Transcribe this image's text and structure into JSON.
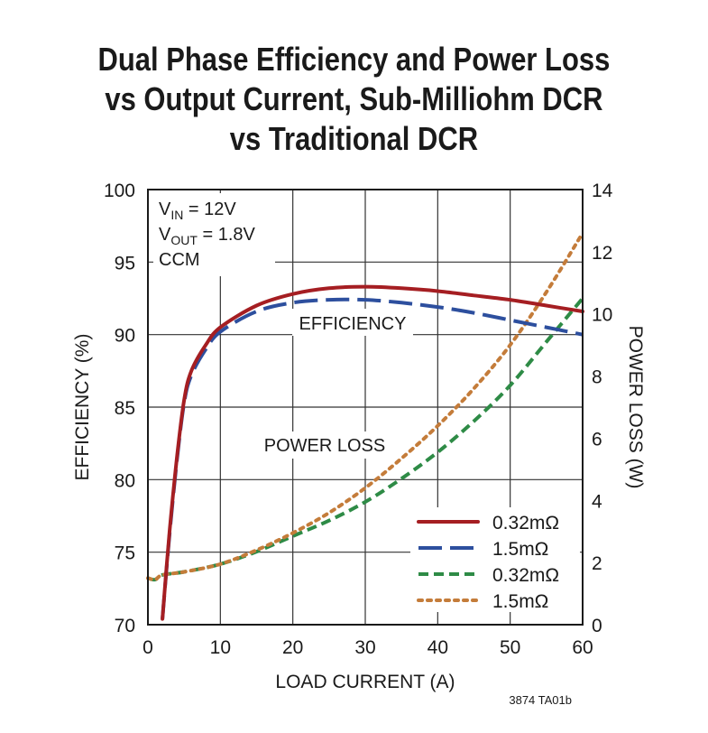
{
  "title_lines": [
    "Dual Phase Efficiency and Power Loss",
    "vs Output Current, Sub-Milliohm DCR",
    "vs Traditional DCR"
  ],
  "figure_code": "3874 TA01b",
  "conditions": {
    "vin": {
      "main": "V",
      "sub": "IN",
      "rest": " = 12V"
    },
    "vout": {
      "main": "V",
      "sub": "OUT",
      "rest": " = 1.8V"
    },
    "mode": "CCM"
  },
  "annotations": {
    "efficiency": "EFFICIENCY",
    "power_loss": "POWER LOSS"
  },
  "chart_data": {
    "type": "line",
    "xlabel": "LOAD CURRENT (A)",
    "ylabel": "EFFICIENCY (%)",
    "y2label": "POWER LOSS (W)",
    "xlim": [
      0,
      60
    ],
    "ylim": [
      70,
      100
    ],
    "y2lim": [
      0,
      14
    ],
    "xticks": [
      "0",
      "10",
      "20",
      "30",
      "40",
      "50",
      "60"
    ],
    "yticks": [
      "70",
      "75",
      "80",
      "85",
      "90",
      "95",
      "100"
    ],
    "y2ticks": [
      "0",
      "2",
      "4",
      "6",
      "8",
      "10",
      "12",
      "14"
    ],
    "grid": true,
    "legend_position": "bottom-right",
    "series": [
      {
        "name": "0.32mΩ",
        "axis": "efficiency",
        "color": "#a51e22",
        "dash": "solid",
        "x": [
          2,
          3,
          4,
          5,
          6,
          8,
          10,
          15,
          20,
          25,
          30,
          35,
          40,
          45,
          50,
          55,
          60
        ],
        "y": [
          70.4,
          76.5,
          81.5,
          85.5,
          87.5,
          89.3,
          90.5,
          92.0,
          92.8,
          93.2,
          93.3,
          93.2,
          93.0,
          92.7,
          92.4,
          92.0,
          91.6
        ]
      },
      {
        "name": "1.5mΩ",
        "axis": "efficiency",
        "color": "#2d4f9e",
        "dash": "long-dash",
        "x": [
          2,
          3,
          4,
          5,
          6,
          8,
          10,
          15,
          20,
          25,
          30,
          35,
          40,
          45,
          50,
          55,
          60
        ],
        "y": [
          70.4,
          76.3,
          81.3,
          85.3,
          87.2,
          89.0,
          90.2,
          91.6,
          92.2,
          92.4,
          92.4,
          92.2,
          91.9,
          91.5,
          91.0,
          90.5,
          90.0
        ]
      },
      {
        "name": "0.32mΩ",
        "axis": "power_loss",
        "color": "#2e8b46",
        "dash": "dashed",
        "x": [
          0,
          1,
          2,
          5,
          10,
          15,
          20,
          25,
          30,
          35,
          40,
          45,
          50,
          55,
          60
        ],
        "y": [
          1.5,
          1.45,
          1.6,
          1.7,
          1.95,
          2.35,
          2.85,
          3.35,
          3.95,
          4.7,
          5.55,
          6.55,
          7.7,
          9.1,
          10.5
        ]
      },
      {
        "name": "1.5mΩ",
        "axis": "power_loss",
        "color": "#c47c3a",
        "dash": "dotted",
        "x": [
          0,
          1,
          2,
          5,
          10,
          15,
          20,
          25,
          30,
          35,
          40,
          45,
          50,
          55,
          60
        ],
        "y": [
          1.5,
          1.45,
          1.6,
          1.7,
          1.95,
          2.4,
          2.95,
          3.6,
          4.4,
          5.35,
          6.4,
          7.6,
          9.0,
          10.7,
          12.6
        ]
      }
    ]
  }
}
